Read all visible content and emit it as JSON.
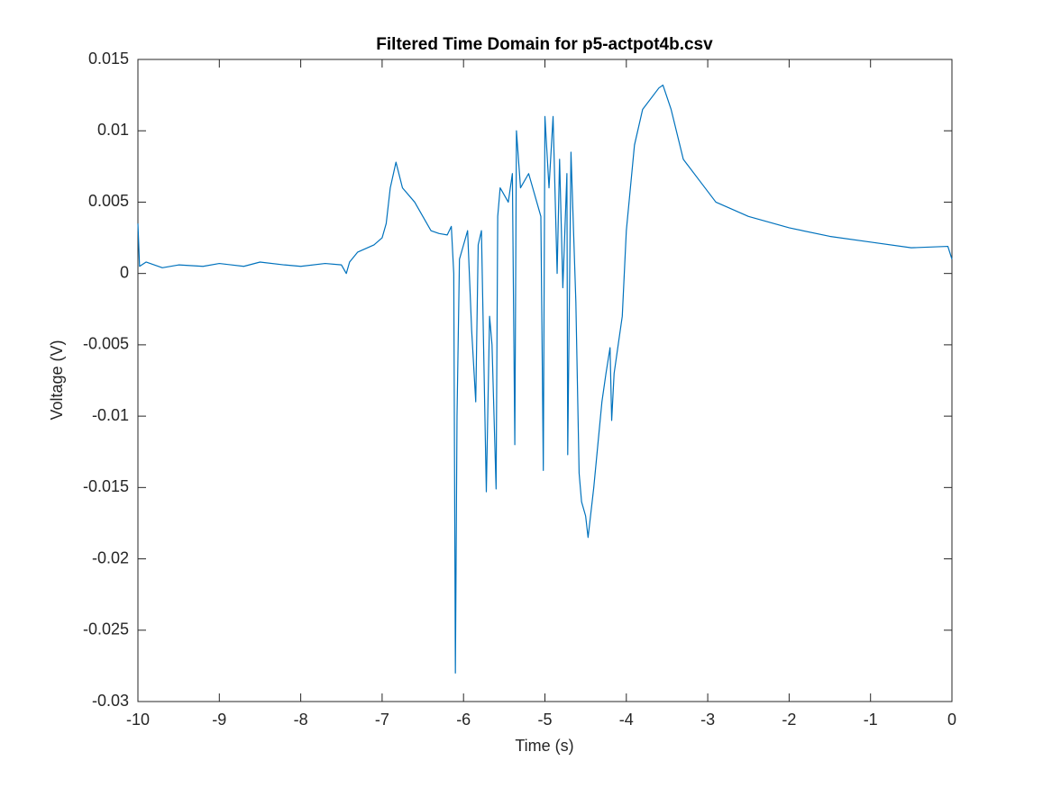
{
  "chart_data": {
    "type": "line",
    "title": "Filtered Time Domain for p5-actpot4b.csv",
    "x_label": "Time (s)",
    "y_label": "Voltage (V)",
    "xlim": [
      -10,
      0
    ],
    "ylim": [
      -0.03,
      0.015
    ],
    "xticks": [
      -10,
      -9,
      -8,
      -7,
      -6,
      -5,
      -4,
      -3,
      -2,
      -1,
      0
    ],
    "yticks": [
      -0.03,
      -0.025,
      -0.02,
      -0.015,
      -0.01,
      -0.005,
      0,
      0.005,
      0.01,
      0.015
    ],
    "series": [
      {
        "color": "#0072bd",
        "x": [
          -10,
          -9.98,
          -9.9,
          -9.7,
          -9.5,
          -9.2,
          -9.0,
          -8.7,
          -8.5,
          -8.2,
          -8.0,
          -7.7,
          -7.5,
          -7.44,
          -7.4,
          -7.3,
          -7.1,
          -7.0,
          -6.95,
          -6.9,
          -6.83,
          -6.75,
          -6.6,
          -6.5,
          -6.4,
          -6.3,
          -6.2,
          -6.15,
          -6.12,
          -6.1,
          -6.08,
          -6.05,
          -6.0,
          -5.95,
          -5.9,
          -5.85,
          -5.82,
          -5.78,
          -5.72,
          -5.68,
          -5.65,
          -5.6,
          -5.58,
          -5.55,
          -5.45,
          -5.4,
          -5.37,
          -5.35,
          -5.3,
          -5.2,
          -5.1,
          -5.05,
          -5.02,
          -5.0,
          -4.95,
          -4.9,
          -4.85,
          -4.82,
          -4.78,
          -4.73,
          -4.72,
          -4.68,
          -4.62,
          -4.58,
          -4.55,
          -4.5,
          -4.47,
          -4.4,
          -4.35,
          -4.3,
          -4.25,
          -4.2,
          -4.18,
          -4.15,
          -4.1,
          -4.05,
          -4.0,
          -3.9,
          -3.8,
          -3.6,
          -3.55,
          -3.45,
          -3.3,
          -3.1,
          -2.9,
          -2.5,
          -2.0,
          -1.5,
          -1.0,
          -0.5,
          -0.05,
          0
        ],
        "values": [
          0.0035,
          0.0005,
          0.0008,
          0.0004,
          0.0006,
          0.0005,
          0.0007,
          0.0005,
          0.0008,
          0.0006,
          0.0005,
          0.0007,
          0.0006,
          0.0,
          0.0008,
          0.0015,
          0.002,
          0.0025,
          0.0035,
          0.006,
          0.0078,
          0.006,
          0.005,
          0.004,
          0.003,
          0.0028,
          0.0027,
          0.0033,
          0.0,
          -0.028,
          -0.01,
          0.001,
          0.002,
          0.003,
          -0.004,
          -0.009,
          0.002,
          0.003,
          -0.0153,
          -0.003,
          -0.005,
          -0.0151,
          0.004,
          0.006,
          0.005,
          0.007,
          -0.012,
          0.01,
          0.006,
          0.007,
          0.005,
          0.004,
          -0.0138,
          0.011,
          0.006,
          0.011,
          0.0,
          0.008,
          -0.001,
          0.007,
          -0.0127,
          0.0085,
          -0.002,
          -0.014,
          -0.016,
          -0.017,
          -0.0185,
          -0.015,
          -0.012,
          -0.009,
          -0.007,
          -0.0052,
          -0.0103,
          -0.007,
          -0.005,
          -0.003,
          0.003,
          0.009,
          0.0115,
          0.013,
          0.0132,
          0.0115,
          0.008,
          0.0065,
          0.005,
          0.004,
          0.0032,
          0.0026,
          0.0022,
          0.0018,
          0.0019,
          0.001
        ]
      }
    ],
    "grid": false
  }
}
